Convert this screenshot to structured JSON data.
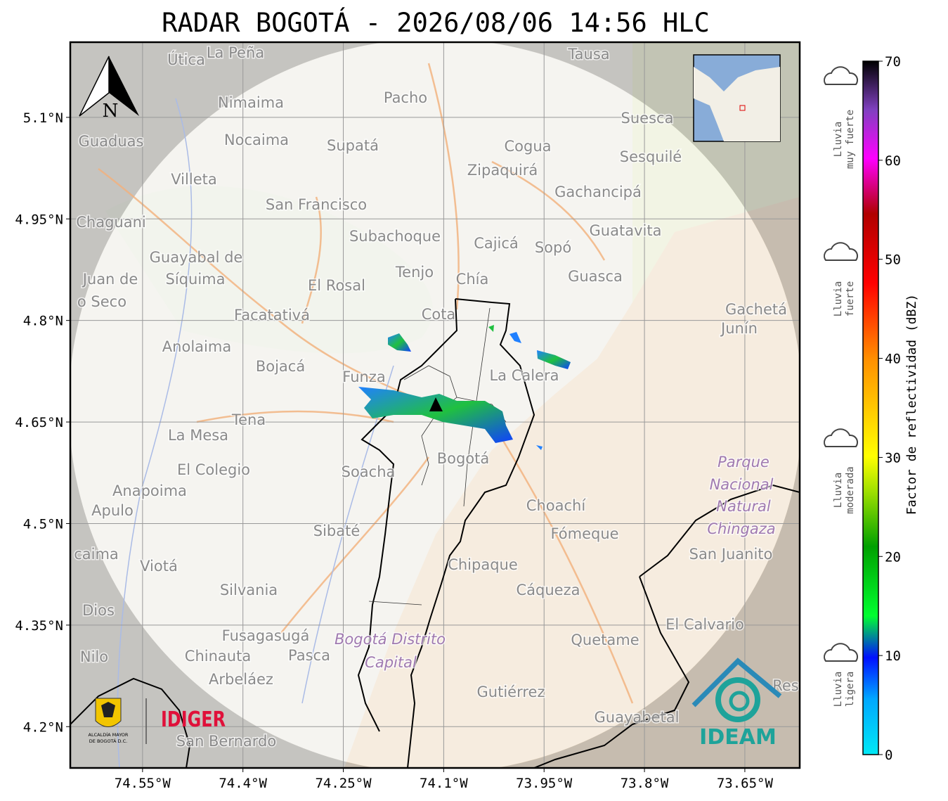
{
  "title": "RADAR BOGOTÁ - 2026/08/06 14:56 HLC",
  "map": {
    "xlim": [
      -74.658,
      -73.568
    ],
    "ylim": [
      4.139,
      5.211
    ],
    "xticks": [
      {
        "value": -74.55,
        "label": "74.55°W"
      },
      {
        "value": -74.4,
        "label": "74.4°W"
      },
      {
        "value": -74.25,
        "label": "74.25°W"
      },
      {
        "value": -74.1,
        "label": "74.1°W"
      },
      {
        "value": -73.95,
        "label": "73.95°W"
      },
      {
        "value": -73.8,
        "label": "73.8°W"
      },
      {
        "value": -73.65,
        "label": "73.65°W"
      }
    ],
    "yticks": [
      {
        "value": 5.1,
        "label": "5.1°N"
      },
      {
        "value": 4.95,
        "label": "4.95°N"
      },
      {
        "value": 4.8,
        "label": "4.8°N"
      },
      {
        "value": 4.65,
        "label": "4.65°N"
      },
      {
        "value": 4.5,
        "label": "4.5°N"
      },
      {
        "value": 4.35,
        "label": "4.35°N"
      },
      {
        "value": 4.2,
        "label": "4.2°N"
      }
    ],
    "places": [
      "Útica",
      "La Peña",
      "Tausa",
      "Pacho",
      "Nimaima",
      "Suesca",
      "Guaduas",
      "Nocaima",
      "Supatá",
      "Cogua",
      "Sesquilé",
      "Zipaquirá",
      "Villeta",
      "Gachancipá",
      "San Francisco",
      "Chaguani",
      "Guatavita",
      "Subachoque",
      "Cajicá",
      "Sopó",
      "Guayabal de",
      "Síquima",
      "Tenjo",
      "Chía",
      "Guasca",
      "Juan de",
      "El Rosal",
      "o Seco",
      "Gachetá",
      "Facatativá",
      "Cota",
      "Junín",
      "Anolaima",
      "Bojacá",
      "La Calera",
      "Funza",
      "Tena",
      "La Mesa",
      "Bogotá",
      "Soacha",
      "El Colegio",
      "Anapoima",
      "Apulo",
      "Choachí",
      "Sibaté",
      "Fómeque",
      "San Juanito",
      "caima",
      "Viotá",
      "Chipaque",
      "Silvania",
      "Cáqueza",
      "Dios",
      "El Calvario",
      "Fusagasugá",
      "Quetame",
      "Nilo",
      "Chinauta",
      "Pasca",
      "Arbeláez",
      "Gutiérrez",
      "Res",
      "Guayabetal",
      "San Bernardo"
    ],
    "parks": [
      "Parque",
      "Nacional",
      "Natural",
      "Chingaza",
      "Bogotá Distrito",
      "Capital"
    ]
  },
  "north": "N",
  "logos": {
    "idiger": "IDIGER",
    "alcaldia": [
      "ALCALDÍA MAYOR",
      "DE BOGOTÁ D.C."
    ],
    "ideam": "IDEAM"
  },
  "colorbar": {
    "label": "Factor de reflectividad (dBZ)",
    "ylim": [
      0,
      70
    ],
    "yticks": [
      0,
      10,
      20,
      30,
      40,
      50,
      60,
      70
    ]
  },
  "rain_classes": [
    [
      "Lluvia",
      "muy fuerte"
    ],
    [
      "Lluvia",
      "fuerte"
    ],
    [
      "Lluvia",
      "moderada"
    ],
    [
      "Lluvia",
      "ligera"
    ]
  ]
}
